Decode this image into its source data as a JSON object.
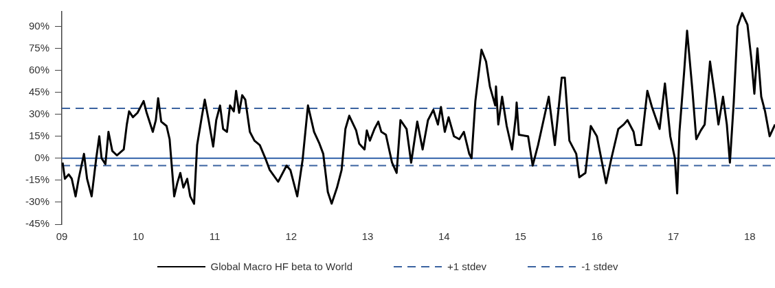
{
  "chart_data": {
    "type": "line",
    "x": [
      2009.01,
      2009.04,
      2009.09,
      2009.13,
      2009.18,
      2009.22,
      2009.29,
      2009.33,
      2009.39,
      2009.45,
      2009.49,
      2009.52,
      2009.57,
      2009.61,
      2009.66,
      2009.72,
      2009.81,
      2009.85,
      2009.88,
      2009.93,
      2009.99,
      2010.07,
      2010.11,
      2010.19,
      2010.23,
      2010.26,
      2010.3,
      2010.37,
      2010.41,
      2010.47,
      2010.51,
      2010.55,
      2010.59,
      2010.64,
      2010.68,
      2010.73,
      2010.77,
      2010.83,
      2010.87,
      2010.92,
      2010.98,
      2011.02,
      2011.07,
      2011.11,
      2011.16,
      2011.2,
      2011.25,
      2011.28,
      2011.32,
      2011.36,
      2011.4,
      2011.46,
      2011.52,
      2011.59,
      2011.67,
      2011.72,
      2011.83,
      2011.94,
      2011.99,
      2012.08,
      2012.15,
      2012.22,
      2012.3,
      2012.37,
      2012.42,
      2012.48,
      2012.53,
      2012.6,
      2012.66,
      2012.71,
      2012.76,
      2012.85,
      2012.89,
      2012.96,
      2012.99,
      2013.03,
      2013.09,
      2013.14,
      2013.18,
      2013.24,
      2013.32,
      2013.38,
      2013.43,
      2013.51,
      2013.57,
      2013.65,
      2013.72,
      2013.79,
      2013.86,
      2013.92,
      2013.96,
      2014.01,
      2014.06,
      2014.13,
      2014.2,
      2014.26,
      2014.33,
      2014.36,
      2014.41,
      2014.49,
      2014.55,
      2014.6,
      2014.67,
      2014.68,
      2014.71,
      2014.76,
      2014.82,
      2014.89,
      2014.94,
      2014.95,
      2014.98,
      2015.1,
      2015.16,
      2015.23,
      2015.37,
      2015.45,
      2015.54,
      2015.58,
      2015.64,
      2015.73,
      2015.77,
      2015.85,
      2015.92,
      2016.0,
      2016.12,
      2016.19,
      2016.28,
      2016.35,
      2016.4,
      2016.48,
      2016.51,
      2016.58,
      2016.66,
      2016.72,
      2016.82,
      2016.89,
      2016.96,
      2017.02,
      2017.05,
      2017.08,
      2017.14,
      2017.18,
      2017.25,
      2017.3,
      2017.36,
      2017.41,
      2017.48,
      2017.54,
      2017.59,
      2017.65,
      2017.7,
      2017.74,
      2017.79,
      2017.84,
      2017.9,
      2017.97,
      2018.02,
      2018.06,
      2018.1,
      2018.15,
      2018.2,
      2018.26,
      2018.33
    ],
    "series": [
      {
        "name": "Global Macro HF beta to World",
        "color": "#000000",
        "values": [
          -3,
          -14,
          -11,
          -14,
          -26,
          -14,
          3,
          -14,
          -26,
          0,
          15,
          0,
          -4,
          18,
          5,
          2,
          6,
          23,
          32,
          28,
          31,
          39,
          31,
          18,
          26,
          41,
          25,
          22,
          13,
          -26,
          -17,
          -10,
          -20,
          -14,
          -26,
          -31,
          9,
          28,
          40,
          26,
          8,
          26,
          36,
          20,
          18,
          36,
          32,
          46,
          31,
          43,
          40,
          18,
          12,
          9,
          -1,
          -8,
          -16,
          -5,
          -8,
          -26,
          -1,
          36,
          18,
          10,
          3,
          -23,
          -31,
          -20,
          -8,
          20,
          29,
          19,
          10,
          6,
          19,
          12,
          20,
          25,
          18,
          16,
          -3,
          -10,
          26,
          20,
          -3,
          25,
          6,
          26,
          33,
          23,
          35,
          18,
          28,
          15,
          13,
          18,
          3,
          0,
          39,
          74,
          66,
          49,
          36,
          49,
          23,
          42,
          22,
          6,
          29,
          38,
          16,
          15,
          -5,
          9,
          42,
          9,
          55,
          55,
          12,
          3,
          -13,
          -10,
          22,
          15,
          -17,
          0,
          20,
          23,
          26,
          18,
          9,
          9,
          46,
          35,
          20,
          51,
          15,
          0,
          -24,
          18,
          58,
          87,
          46,
          13,
          19,
          23,
          66,
          44,
          23,
          42,
          23,
          -3,
          38,
          90,
          99,
          91,
          68,
          44,
          75,
          42,
          32,
          15,
          23
        ]
      }
    ],
    "xlim": [
      2009,
      2018.33
    ],
    "xticks": [
      {
        "value": 2009,
        "label": "09"
      },
      {
        "value": 2010,
        "label": "10"
      },
      {
        "value": 2011,
        "label": "11"
      },
      {
        "value": 2012,
        "label": "12"
      },
      {
        "value": 2013,
        "label": "13"
      },
      {
        "value": 2014,
        "label": "14"
      },
      {
        "value": 2015,
        "label": "15"
      },
      {
        "value": 2016,
        "label": "16"
      },
      {
        "value": 2017,
        "label": "17"
      },
      {
        "value": 2018,
        "label": "18"
      }
    ],
    "ylim": [
      -45,
      100
    ],
    "yticks": [
      {
        "value": -45,
        "label": "-45%"
      },
      {
        "value": -30,
        "label": "-30%"
      },
      {
        "value": -15,
        "label": "-15%"
      },
      {
        "value": 0,
        "label": "0%"
      },
      {
        "value": 15,
        "label": "15%"
      },
      {
        "value": 30,
        "label": "30%"
      },
      {
        "value": 45,
        "label": "45%"
      },
      {
        "value": 60,
        "label": "60%"
      },
      {
        "value": 75,
        "label": "75%"
      },
      {
        "value": 90,
        "label": "90%"
      }
    ],
    "ref_lines": [
      {
        "axis": "y",
        "value": 0,
        "color": "#2e5fa8",
        "line_style": "solid"
      },
      {
        "axis": "y",
        "value": 34,
        "label": "+1 stdev",
        "color": "#3a62a0",
        "line_style": "dashed"
      },
      {
        "axis": "y",
        "value": -5,
        "label": "-1 stdev",
        "color": "#3a62a0",
        "line_style": "dashed"
      }
    ],
    "legend": "bottom",
    "grid": false,
    "marker": "none",
    "line_style": "solid"
  }
}
